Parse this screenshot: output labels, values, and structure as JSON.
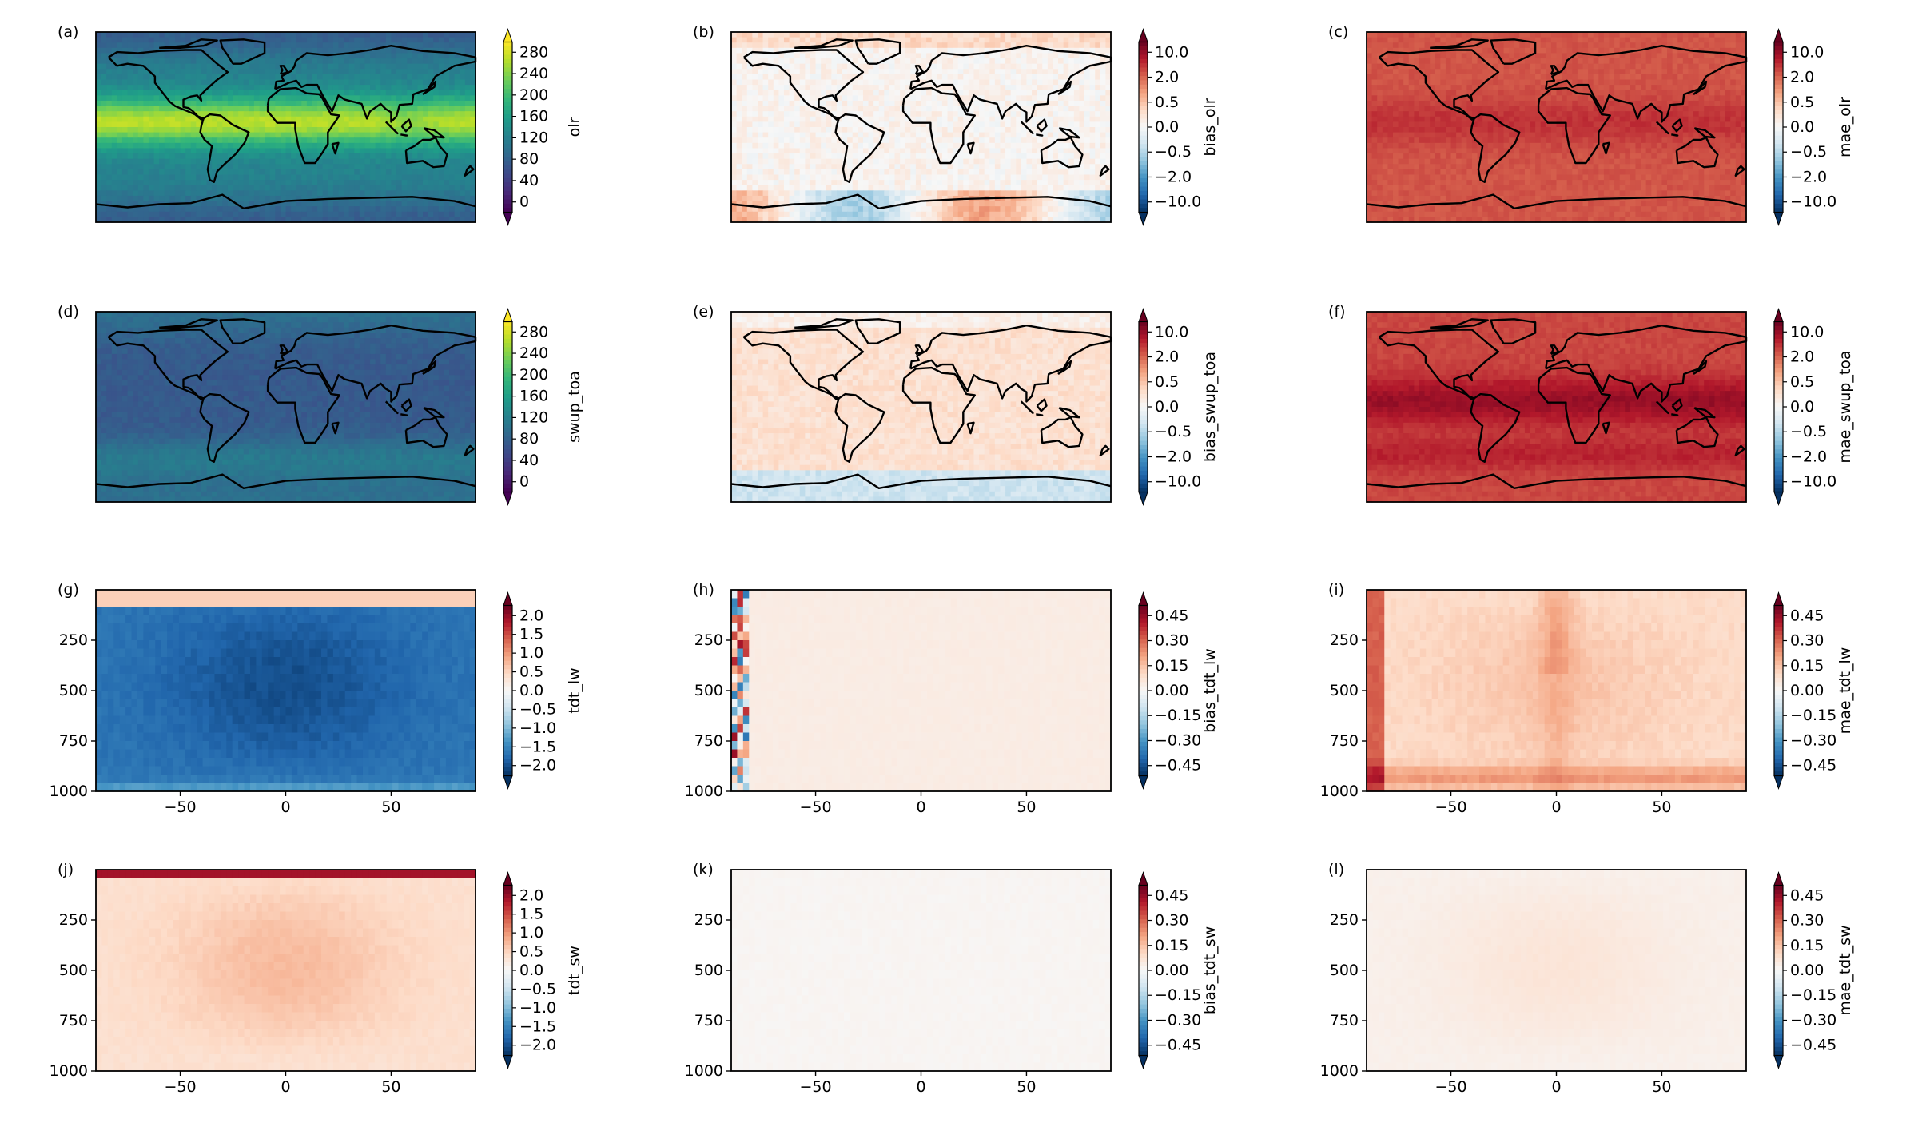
{
  "colors": {
    "viridis": [
      "#440154",
      "#482878",
      "#3e4989",
      "#31688e",
      "#26828e",
      "#1f9e89",
      "#35b779",
      "#6ece58",
      "#b5de2b",
      "#fde725"
    ],
    "rdbu": [
      "#053061",
      "#2166ac",
      "#4393c3",
      "#92c5de",
      "#d1e5f0",
      "#f7f7f7",
      "#fddbc7",
      "#f4a582",
      "#d6604d",
      "#b2182b",
      "#67001f"
    ],
    "coast": "#000000"
  },
  "chart_data": [
    {
      "label": "(a)",
      "type": "heatmap",
      "kind": "map",
      "colorbar": {
        "label": "olr",
        "cmap": "viridis",
        "range": [
          0,
          300
        ],
        "ticks": [
          "280",
          "240",
          "200",
          "160",
          "120",
          "80",
          "40",
          "0"
        ],
        "extend": "both"
      }
    },
    {
      "label": "(b)",
      "type": "heatmap",
      "kind": "map",
      "colorbar": {
        "label": "bias_olr",
        "cmap": "rdbu",
        "range": [
          -10,
          10
        ],
        "ticks": [
          "10.0",
          "2.0",
          "0.5",
          "0.0",
          "−0.5",
          "−2.0",
          "−10.0"
        ],
        "extend": "both"
      }
    },
    {
      "label": "(c)",
      "type": "heatmap",
      "kind": "map",
      "colorbar": {
        "label": "mae_olr",
        "cmap": "rdbu",
        "range": [
          -10,
          10
        ],
        "ticks": [
          "10.0",
          "2.0",
          "0.5",
          "0.0",
          "−0.5",
          "−2.0",
          "−10.0"
        ],
        "extend": "both"
      }
    },
    {
      "label": "(d)",
      "type": "heatmap",
      "kind": "map",
      "colorbar": {
        "label": "swup_toa",
        "cmap": "viridis",
        "range": [
          0,
          300
        ],
        "ticks": [
          "280",
          "240",
          "200",
          "160",
          "120",
          "80",
          "40",
          "0"
        ],
        "extend": "both"
      }
    },
    {
      "label": "(e)",
      "type": "heatmap",
      "kind": "map",
      "colorbar": {
        "label": "bias_swup_toa",
        "cmap": "rdbu",
        "range": [
          -10,
          10
        ],
        "ticks": [
          "10.0",
          "2.0",
          "0.5",
          "0.0",
          "−0.5",
          "−2.0",
          "−10.0"
        ],
        "extend": "both"
      }
    },
    {
      "label": "(f)",
      "type": "heatmap",
      "kind": "map",
      "colorbar": {
        "label": "mae_swup_toa",
        "cmap": "rdbu",
        "range": [
          -10,
          10
        ],
        "ticks": [
          "10.0",
          "2.0",
          "0.5",
          "0.0",
          "−0.5",
          "−2.0",
          "−10.0"
        ],
        "extend": "both"
      }
    },
    {
      "label": "(g)",
      "type": "heatmap",
      "kind": "section",
      "xlim": [
        -90,
        90
      ],
      "xticks": [
        "−50",
        "0",
        "50"
      ],
      "ylim": [
        1000,
        0
      ],
      "yticks": [
        "250",
        "500",
        "750",
        "1000"
      ],
      "colorbar": {
        "label": "tdt_lw",
        "cmap": "rdbu",
        "range": [
          -2,
          2
        ],
        "ticks": [
          "2.0",
          "1.5",
          "1.0",
          "0.5",
          "0.0",
          "−0.5",
          "−1.0",
          "−1.5",
          "−2.0"
        ],
        "extend": "both"
      }
    },
    {
      "label": "(h)",
      "type": "heatmap",
      "kind": "section",
      "xlim": [
        -90,
        90
      ],
      "xticks": [
        "−50",
        "0",
        "50"
      ],
      "ylim": [
        1000,
        0
      ],
      "yticks": [
        "250",
        "500",
        "750",
        "1000"
      ],
      "colorbar": {
        "label": "bias_tdt_lw",
        "cmap": "rdbu",
        "range": [
          -0.5,
          0.5
        ],
        "ticks": [
          "0.45",
          "0.30",
          "0.15",
          "0.00",
          "−0.15",
          "−0.30",
          "−0.45"
        ],
        "extend": "both"
      }
    },
    {
      "label": "(i)",
      "type": "heatmap",
      "kind": "section",
      "xlim": [
        -90,
        90
      ],
      "xticks": [
        "−50",
        "0",
        "50"
      ],
      "ylim": [
        1000,
        0
      ],
      "yticks": [
        "250",
        "500",
        "750",
        "1000"
      ],
      "colorbar": {
        "label": "mae_tdt_lw",
        "cmap": "rdbu",
        "range": [
          -0.5,
          0.5
        ],
        "ticks": [
          "0.45",
          "0.30",
          "0.15",
          "0.00",
          "−0.15",
          "−0.30",
          "−0.45"
        ],
        "extend": "both"
      }
    },
    {
      "label": "(j)",
      "type": "heatmap",
      "kind": "section",
      "xlim": [
        -90,
        90
      ],
      "xticks": [
        "−50",
        "0",
        "50"
      ],
      "ylim": [
        1000,
        0
      ],
      "yticks": [
        "250",
        "500",
        "750",
        "1000"
      ],
      "colorbar": {
        "label": "tdt_sw",
        "cmap": "rdbu",
        "range": [
          -2,
          2
        ],
        "ticks": [
          "2.0",
          "1.5",
          "1.0",
          "0.5",
          "0.0",
          "−0.5",
          "−1.0",
          "−1.5",
          "−2.0"
        ],
        "extend": "both"
      }
    },
    {
      "label": "(k)",
      "type": "heatmap",
      "kind": "section",
      "xlim": [
        -90,
        90
      ],
      "xticks": [
        "−50",
        "0",
        "50"
      ],
      "ylim": [
        1000,
        0
      ],
      "yticks": [
        "250",
        "500",
        "750",
        "1000"
      ],
      "colorbar": {
        "label": "bias_tdt_sw",
        "cmap": "rdbu",
        "range": [
          -0.5,
          0.5
        ],
        "ticks": [
          "0.45",
          "0.30",
          "0.15",
          "0.00",
          "−0.15",
          "−0.30",
          "−0.45"
        ],
        "extend": "both"
      }
    },
    {
      "label": "(l)",
      "type": "heatmap",
      "kind": "section",
      "xlim": [
        -90,
        90
      ],
      "xticks": [
        "−50",
        "0",
        "50"
      ],
      "ylim": [
        1000,
        0
      ],
      "yticks": [
        "250",
        "500",
        "750",
        "1000"
      ],
      "colorbar": {
        "label": "mae_tdt_sw",
        "cmap": "rdbu",
        "range": [
          -0.5,
          0.5
        ],
        "ticks": [
          "0.45",
          "0.30",
          "0.15",
          "0.00",
          "−0.15",
          "−0.30",
          "−0.45"
        ],
        "extend": "both"
      }
    }
  ]
}
